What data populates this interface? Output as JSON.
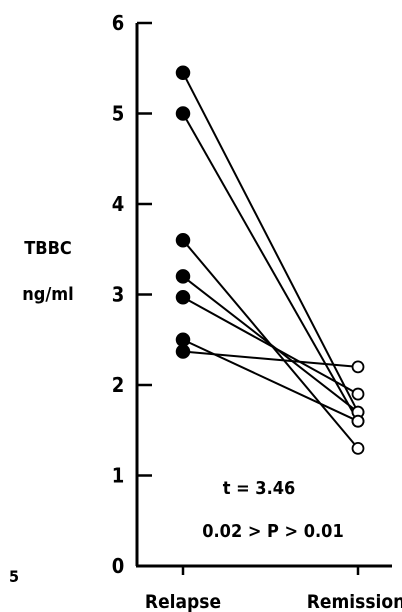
{
  "chart_data": {
    "type": "line",
    "title": "",
    "ylabel_lines": [
      "TBBC",
      "ng/ml"
    ],
    "categories": [
      "Relapse",
      "Remission"
    ],
    "ylim": [
      0,
      6
    ],
    "yticks": [
      "0",
      "1",
      "2",
      "3",
      "4",
      "5",
      "6"
    ],
    "grid": false,
    "relapse_marker": "filled circle",
    "remission_marker": "open circle",
    "pairs": [
      {
        "relapse": 5.45,
        "remission": 1.7
      },
      {
        "relapse": 5.0,
        "remission": 1.6
      },
      {
        "relapse": 3.6,
        "remission": 1.3
      },
      {
        "relapse": 3.2,
        "remission": 1.7
      },
      {
        "relapse": 2.97,
        "remission": 1.9
      },
      {
        "relapse": 2.5,
        "remission": 1.6
      },
      {
        "relapse": 2.37,
        "remission": 2.2
      }
    ],
    "annotations": [
      "t = 3.46",
      "0.02 > P > 0.01"
    ]
  },
  "page_number": "5"
}
